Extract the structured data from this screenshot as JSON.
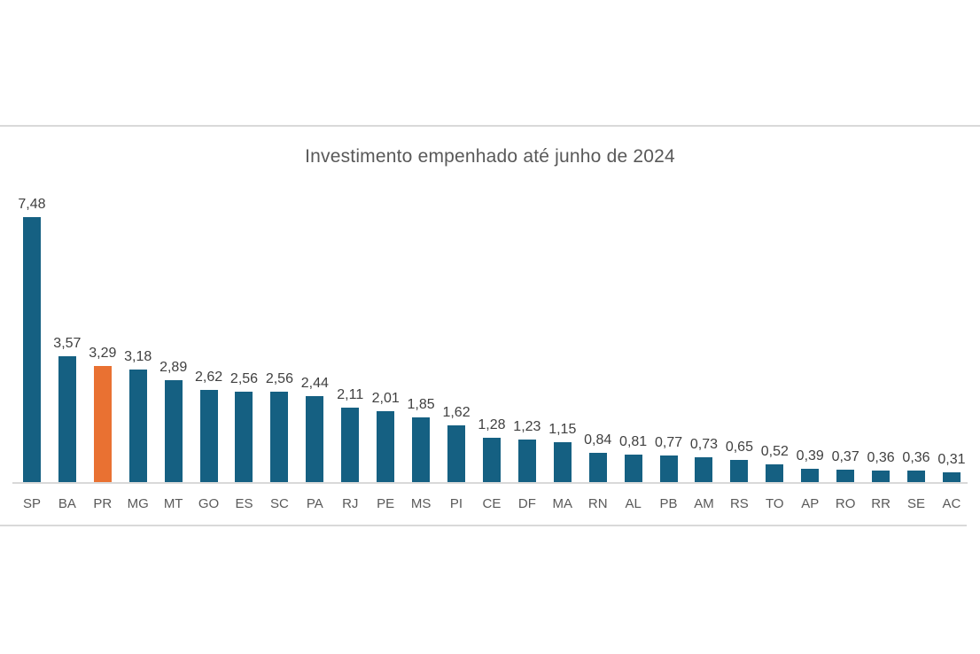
{
  "page": {
    "background": "#ffffff",
    "divider_color": "#d9d9d9"
  },
  "chart_data": {
    "type": "bar",
    "title": "Investimento empenhado até junho de 2024",
    "title_color": "#595959",
    "categories": [
      "SP",
      "BA",
      "PR",
      "MG",
      "MT",
      "GO",
      "ES",
      "SC",
      "PA",
      "RJ",
      "PE",
      "MS",
      "PI",
      "CE",
      "DF",
      "MA",
      "RN",
      "AL",
      "PB",
      "AM",
      "RS",
      "TO",
      "AP",
      "RO",
      "RR",
      "SE",
      "AC"
    ],
    "values": [
      7.48,
      3.57,
      3.29,
      3.18,
      2.89,
      2.62,
      2.56,
      2.56,
      2.44,
      2.11,
      2.01,
      1.85,
      1.62,
      1.28,
      1.23,
      1.15,
      0.84,
      0.81,
      0.77,
      0.73,
      0.65,
      0.52,
      0.39,
      0.37,
      0.36,
      0.36,
      0.31
    ],
    "labels": [
      "7,48",
      "3,57",
      "3,29",
      "3,18",
      "2,89",
      "2,62",
      "2,56",
      "2,56",
      "2,44",
      "2,11",
      "2,01",
      "1,85",
      "1,62",
      "1,28",
      "1,23",
      "1,15",
      "0,84",
      "0,81",
      "0,77",
      "0,73",
      "0,65",
      "0,52",
      "0,39",
      "0,37",
      "0,36",
      "0,36",
      "0,31"
    ],
    "highlighted_category": "PR",
    "bar_color": "#156082",
    "highlight_color": "#E97132",
    "label_color": "#404040",
    "axis_label_color": "#595959",
    "axis_line_color": "#d9d9d9",
    "ylim": [
      0,
      7.48
    ],
    "xlabel": "",
    "ylabel": "",
    "grid": false,
    "legend": false,
    "data_label_position": "outside-end"
  }
}
